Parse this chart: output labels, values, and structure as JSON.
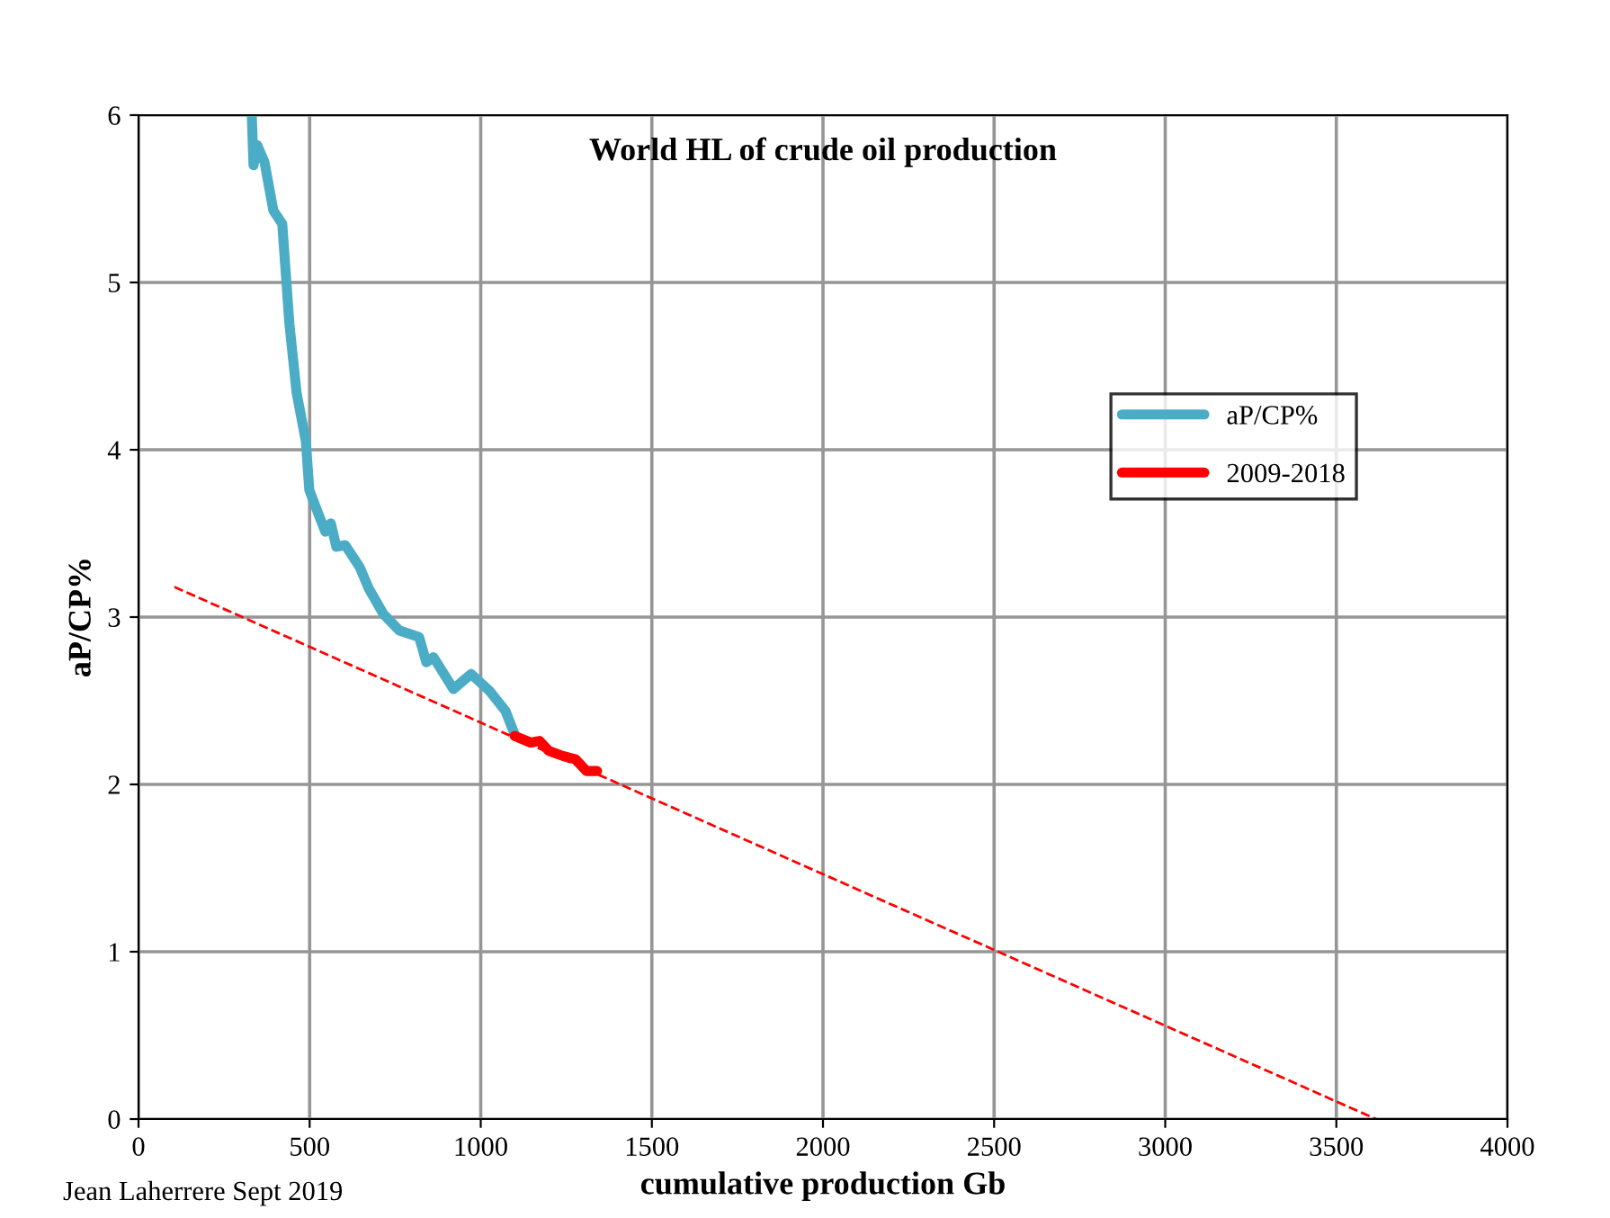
{
  "chart_data": {
    "type": "line",
    "title": "World HL of crude oil production",
    "xlabel": "cumulative production Gb",
    "ylabel": "aP/CP%",
    "xlim": [
      0,
      4000
    ],
    "ylim": [
      0,
      6
    ],
    "xticks": [
      0,
      500,
      1000,
      1500,
      2000,
      2500,
      3000,
      3500,
      4000
    ],
    "yticks": [
      0,
      1,
      2,
      3,
      4,
      5,
      6
    ],
    "grid": true,
    "legend": "right",
    "marker": "none",
    "series": [
      {
        "name": "aP/CP%",
        "color": "#4bacc6",
        "line_style": "solid",
        "x": [
          331,
          336,
          347,
          368,
          394,
          420,
          441,
          462,
          489,
          499,
          525,
          546,
          562,
          578,
          604,
          646,
          673,
          715,
          762,
          820,
          841,
          862,
          920,
          972,
          1025,
          1072,
          1099
        ],
        "values": [
          6.0,
          5.7,
          5.82,
          5.72,
          5.43,
          5.35,
          4.75,
          4.34,
          4.05,
          3.76,
          3.62,
          3.51,
          3.56,
          3.42,
          3.43,
          3.3,
          3.17,
          3.02,
          2.92,
          2.88,
          2.73,
          2.76,
          2.57,
          2.66,
          2.56,
          2.44,
          2.3
        ]
      },
      {
        "name": "2009-2018",
        "color": "#ff0000",
        "line_style": "solid",
        "x": [
          1099,
          1146,
          1172,
          1199,
          1240,
          1277,
          1309,
          1340
        ],
        "values": [
          2.29,
          2.25,
          2.26,
          2.2,
          2.17,
          2.15,
          2.08,
          2.08
        ]
      },
      {
        "color": "#ff0000",
        "line_style": "dashed",
        "x": [
          105,
          3616
        ],
        "values": [
          3.18,
          0
        ]
      }
    ],
    "annotations": [
      "Jean Laherrere Sept 2019"
    ]
  }
}
